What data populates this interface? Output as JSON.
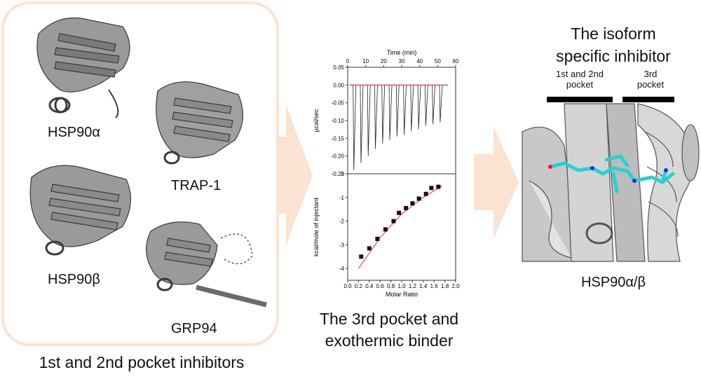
{
  "left_panel": {
    "proteins": [
      "HSP90α",
      "TRAP-1",
      "HSP90β",
      "GRP94"
    ],
    "caption": "1st and 2nd pocket inhibitors"
  },
  "middle_panel": {
    "caption_line1": "The 3rd pocket and",
    "caption_line2": "exothermic binder"
  },
  "right_panel": {
    "title_line1": "The isoform",
    "title_line2": "specific inhibitor",
    "pocket12_line1": "1st and 2nd",
    "pocket12_line2": "pocket",
    "pocket3_line1": "3rd",
    "pocket3_line2": "pocket",
    "structure_label": "HSP90α/β"
  },
  "colors": {
    "panel_border": "#fbe3d2",
    "arrow": "#fbe3d2",
    "ligand": "#22d3d3",
    "fit_line": "#e03030"
  },
  "chart_data": [
    {
      "type": "line",
      "title": "",
      "xlabel": "Time (min)",
      "ylabel": "µcal/sec",
      "xlim": [
        0,
        60
      ],
      "ylim": [
        -0.25,
        0.05
      ],
      "x_ticks": [
        "0",
        "10",
        "20",
        "30",
        "40",
        "50",
        "60"
      ],
      "y_ticks": [
        "0.05",
        "0.00",
        "-0.05",
        "-0.10",
        "-0.15",
        "-0.20",
        "-0.25"
      ],
      "injection_times": [
        3,
        7,
        11,
        15,
        19,
        23,
        27,
        31,
        35,
        39,
        43,
        47,
        51
      ],
      "peak_minima": [
        -0.24,
        -0.22,
        -0.2,
        -0.18,
        -0.165,
        -0.155,
        -0.145,
        -0.14,
        -0.13,
        -0.125,
        -0.115,
        -0.11,
        -0.105
      ]
    },
    {
      "type": "scatter",
      "title": "",
      "xlabel": "Molar Ratio",
      "ylabel": "kcal/mole of injectant",
      "xlim": [
        0.0,
        2.0
      ],
      "ylim": [
        -4.5,
        0.0
      ],
      "x_ticks": [
        "0.0",
        "0.2",
        "0.4",
        "0.6",
        "0.8",
        "1.0",
        "1.2",
        "1.4",
        "1.6",
        "1.8",
        "2.0"
      ],
      "y_ticks": [
        "0",
        "-1",
        "-2",
        "-3",
        "-4"
      ],
      "x": [
        0.25,
        0.4,
        0.55,
        0.7,
        0.85,
        0.95,
        1.08,
        1.2,
        1.32,
        1.45,
        1.55,
        1.68
      ],
      "y": [
        -3.5,
        -3.15,
        -2.75,
        -2.35,
        -2.0,
        -1.65,
        -1.45,
        -1.25,
        -1.05,
        -0.85,
        -0.6,
        -0.55
      ],
      "fit_x": [
        0.2,
        0.6,
        1.0,
        1.4,
        1.75
      ],
      "fit_y": [
        -4.0,
        -2.7,
        -1.7,
        -1.0,
        -0.5
      ]
    }
  ]
}
